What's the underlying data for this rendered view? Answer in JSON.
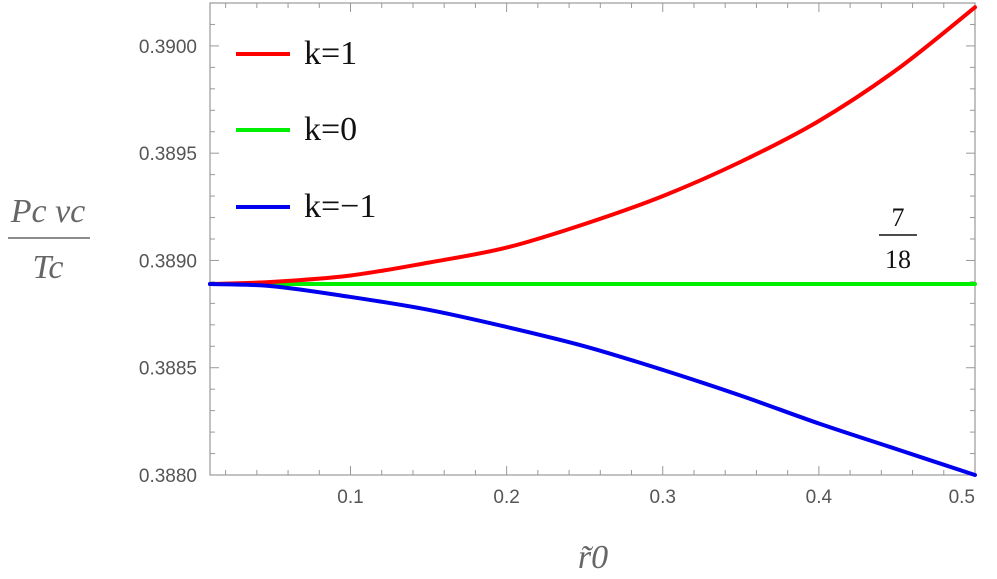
{
  "chart_data": {
    "type": "line",
    "xlabel": "r̃0",
    "ylabel": {
      "numerator": "Pc vc",
      "denominator": "Tc"
    },
    "xlim": [
      0.01,
      0.5
    ],
    "ylim": [
      0.388,
      0.3902
    ],
    "x_ticks": [
      0.1,
      0.2,
      0.3,
      0.4,
      0.5
    ],
    "x_tick_labels": [
      "0.1",
      "0.2",
      "0.3",
      "0.4",
      "0.5"
    ],
    "y_ticks": [
      0.388,
      0.3885,
      0.389,
      0.3895,
      0.39
    ],
    "y_tick_labels": [
      "0.3880",
      "0.3885",
      "0.3890",
      "0.3895",
      "0.3900"
    ],
    "legend_position": "top-left",
    "annotation": {
      "numerator": "7",
      "denominator": "18",
      "x": 0.46,
      "y": 0.38889
    },
    "series": [
      {
        "name": "k=1",
        "color": "#ff0000",
        "x": [
          0.01,
          0.05,
          0.1,
          0.15,
          0.2,
          0.25,
          0.3,
          0.35,
          0.4,
          0.45,
          0.5
        ],
        "values": [
          0.38889,
          0.3889,
          0.38893,
          0.38899,
          0.38906,
          0.38917,
          0.3893,
          0.38946,
          0.38965,
          0.38989,
          0.39018
        ]
      },
      {
        "name": "k=0",
        "color": "#00ee00",
        "x": [
          0.01,
          0.5
        ],
        "values": [
          0.38889,
          0.38889
        ]
      },
      {
        "name": "k=−1",
        "color": "#0000ee",
        "x": [
          0.01,
          0.05,
          0.1,
          0.15,
          0.2,
          0.25,
          0.3,
          0.35,
          0.4,
          0.45,
          0.5
        ],
        "values": [
          0.38889,
          0.38888,
          0.38883,
          0.38877,
          0.38869,
          0.3886,
          0.38849,
          0.38837,
          0.38824,
          0.38812,
          0.388
        ]
      }
    ]
  }
}
